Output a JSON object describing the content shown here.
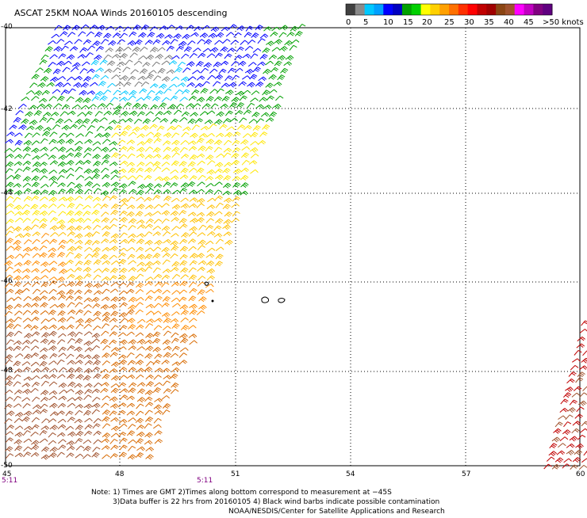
{
  "title": "ASCAT 25KM NOAA Winds 20160105 descending",
  "colorbar": {
    "ticks": [
      "0",
      "5",
      "10",
      "15",
      "20",
      "25",
      "30",
      "35",
      "40",
      "45",
      ">50 knots"
    ],
    "colors": [
      "#404040",
      "#8a8a8a",
      "#00c8ff",
      "#00a0ff",
      "#0000ff",
      "#0000c0",
      "#00a000",
      "#00d000",
      "#ffff00",
      "#ffd000",
      "#ffa000",
      "#ff7000",
      "#ff3000",
      "#ff0000",
      "#c00000",
      "#a00000",
      "#8b4513",
      "#a0522d",
      "#ff00ff",
      "#c000c0",
      "#800080",
      "#600080"
    ]
  },
  "axes": {
    "lat_labels": [
      "-40",
      "-42",
      "-44",
      "-46",
      "-48",
      "-50"
    ],
    "lon_labels": [
      "45",
      "48",
      "51",
      "54",
      "57",
      "60"
    ]
  },
  "time_labels": [
    "5:11",
    "5:11"
  ],
  "notes": {
    "line1": "Note: 1) Times are GMT 2)Times along bottom correspond to measurement at −45S",
    "line2": "3)Data buffer is 22 hrs from 20160105 4) Black wind barbs indicate possible contamination",
    "line3": "NOAA/NESDIS/Center for Satellite Applications and Research"
  },
  "speed_colors": {
    "gray": "#7a7a7a",
    "cyan": "#00c8ff",
    "blue": "#0000ff",
    "green": "#00a000",
    "yellow": "#ffe600",
    "gold": "#ffc000",
    "orange": "#ff8c00",
    "darkorange": "#d86a00",
    "brown": "#a0522d",
    "red": "#c00000"
  }
}
